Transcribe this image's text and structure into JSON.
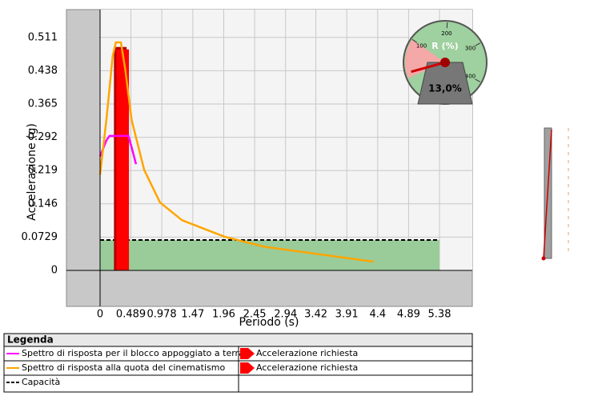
{
  "chart_data": {
    "type": "line",
    "x_label": "Periodo (s)",
    "y_label": "Accelerazione (g)",
    "xlim": [
      -0.533,
      5.9
    ],
    "ylim": [
      -0.079,
      0.572
    ],
    "xticks": [
      0,
      0.489,
      0.978,
      1.47,
      1.96,
      2.45,
      2.94,
      3.42,
      3.91,
      4.4,
      4.89,
      5.38
    ],
    "yticks": [
      0,
      0.0729,
      0.146,
      0.219,
      0.292,
      0.365,
      0.438,
      0.511
    ],
    "grid": true,
    "series": [
      {
        "name": "Spettro di risposta per il blocco appoggiato a terra",
        "color": "#ff00ff",
        "x": [
          0,
          0.1,
          0.15,
          0.45,
          0.5,
          0.57
        ],
        "values": [
          0.25,
          0.285,
          0.295,
          0.295,
          0.27,
          0.233
        ]
      },
      {
        "name": "Spettro di risposta alla quota del cinematismo",
        "color": "#ffa500",
        "x": [
          0,
          0.1,
          0.2,
          0.25,
          0.33,
          0.4,
          0.5,
          0.7,
          0.95,
          1.3,
          1.97,
          2.6,
          3.49,
          4.34
        ],
        "values": [
          0.21,
          0.33,
          0.47,
          0.5,
          0.5,
          0.44,
          0.33,
          0.22,
          0.149,
          0.11,
          0.074,
          0.052,
          0.035,
          0.019
        ]
      }
    ],
    "demand": [
      {
        "name": "Accelerazione richiesta",
        "color": "#ff0000",
        "x": [
          0.22,
          0.42
        ],
        "value": 0.49
      },
      {
        "name": "Accelerazione richiesta",
        "color": "#ff0000",
        "x": [
          0.22,
          0.42
        ],
        "value": 0.49
      }
    ],
    "capacity": {
      "name": "Capacità",
      "color": "#000000",
      "fill": "#99cc99",
      "x": [
        0,
        5.38
      ],
      "value": 0.0667
    },
    "legend_title": "Legenda",
    "gauge": {
      "label": "R (%)",
      "value": 13.0,
      "value_label": "13,0%",
      "lim": [
        0,
        460
      ],
      "ticks": [
        100,
        200,
        300,
        400
      ]
    }
  }
}
